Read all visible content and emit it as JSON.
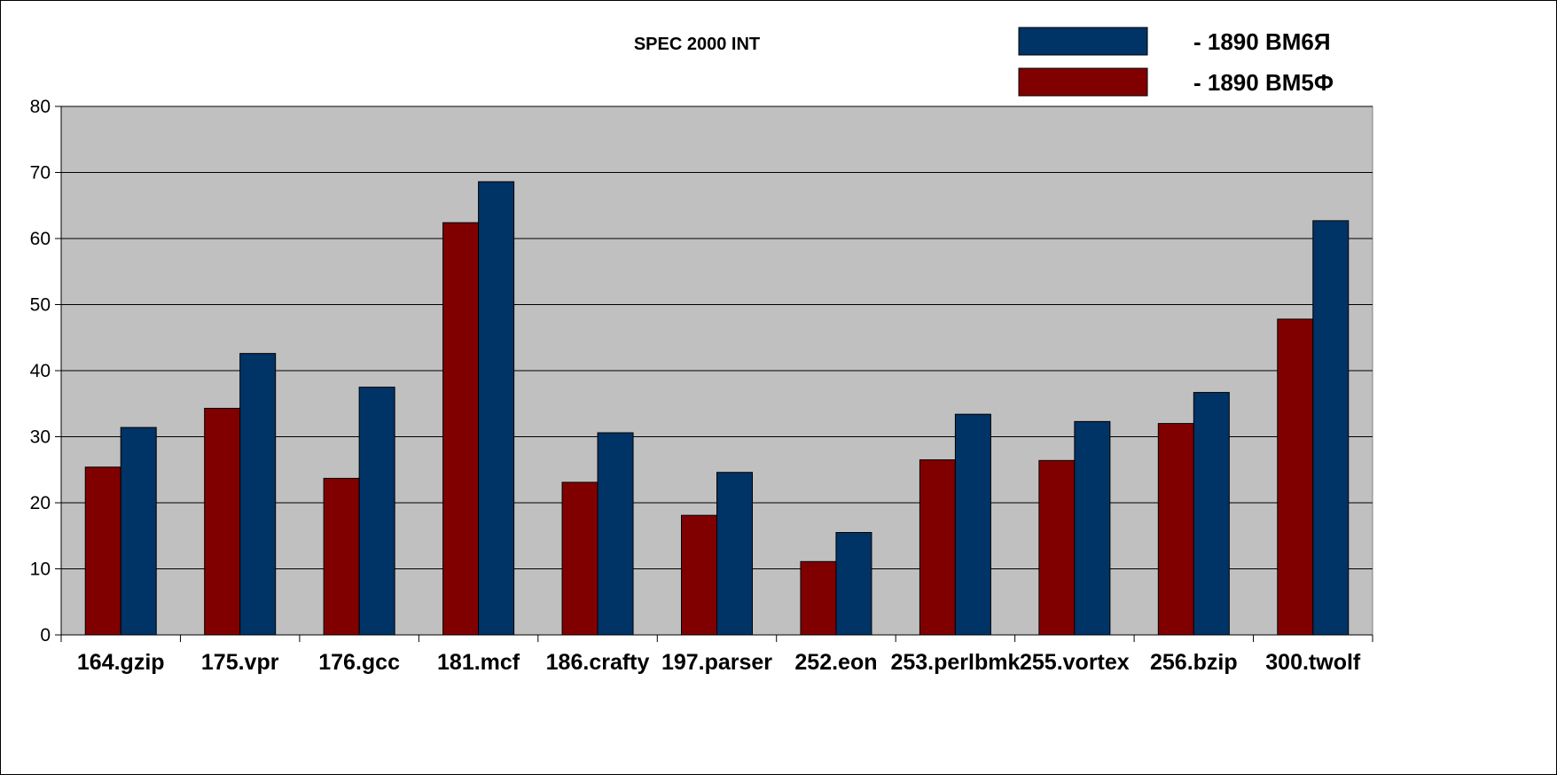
{
  "chart_data": {
    "type": "bar",
    "title": "SPEC 2000 INT",
    "xlabel": "",
    "ylabel": "",
    "ylim": [
      0,
      80
    ],
    "yticks": [
      0,
      10,
      20,
      30,
      40,
      50,
      60,
      70,
      80
    ],
    "grid": true,
    "legend_position": "top-right",
    "categories": [
      "164.gzip",
      "175.vpr",
      "176.gcc",
      "181.mcf",
      "186.crafty",
      "197.parser",
      "252.eon",
      "253.perlbmk",
      "255.vortex",
      "256.bzip",
      "300.twolf"
    ],
    "series": [
      {
        "name": "- 1890 ВМ5Ф",
        "color": "#800000",
        "values": [
          25.4,
          34.3,
          23.7,
          62.4,
          23.1,
          18.1,
          11.1,
          26.5,
          26.4,
          32.0,
          47.8
        ]
      },
      {
        "name": "- 1890 ВМ6Я",
        "color": "#003366",
        "values": [
          31.4,
          42.6,
          37.5,
          68.6,
          30.6,
          24.6,
          15.5,
          33.4,
          32.3,
          36.7,
          62.7
        ]
      }
    ],
    "legend_order": [
      1,
      0
    ],
    "plot_background": "#c0c0c0",
    "gridline_color": "#000000"
  }
}
